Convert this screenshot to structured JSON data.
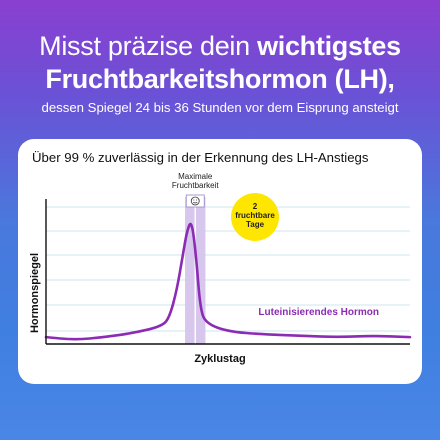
{
  "headline": {
    "line1_regular": "Misst präzise dein ",
    "line1_bold": "wichtigstes",
    "line2": "Fruchtbarkeitshormon (LH),",
    "line3": "dessen Spiegel 24 bis 36 Stunden vor dem Eisprung ansteigt"
  },
  "colors": {
    "background_top": "#8a3fd0",
    "background_bottom": "#4a86e6",
    "curve": "#8c2bb4",
    "band": "#d3c1ea",
    "badge": "#ffe600",
    "grid": "#cfe4ec"
  },
  "chart_data": {
    "type": "line",
    "title": "Über 99 % zuverlässig in der Erkennung des LH-Anstiegs",
    "xlabel": "Zyklustag",
    "ylabel": "Hormonspiegel",
    "grid": true,
    "legend": "right",
    "series": [
      {
        "name": "Luteinisierendes Hormon",
        "x": [
          0,
          4,
          8,
          12,
          16,
          17,
          18,
          18.8,
          19.4,
          20,
          20.6,
          21.2,
          22,
          25,
          30,
          35,
          40,
          45,
          50
        ],
        "y": [
          0.5,
          0.3,
          0.5,
          0.8,
          1.3,
          2.0,
          4.0,
          6.5,
          8.3,
          9.0,
          6.5,
          2.5,
          1.5,
          0.9,
          0.7,
          0.6,
          0.5,
          0.6,
          0.5
        ]
      }
    ],
    "xlim": [
      0,
      50
    ],
    "ylim": [
      0,
      12
    ],
    "highlight": {
      "label": "Maximale Fruchtbarkeit",
      "icon": "smiley-icon",
      "x_start": 19.1,
      "x_end": 21.9
    },
    "badge": {
      "lines": [
        "2",
        "fruchtbare",
        "Tage"
      ]
    }
  }
}
